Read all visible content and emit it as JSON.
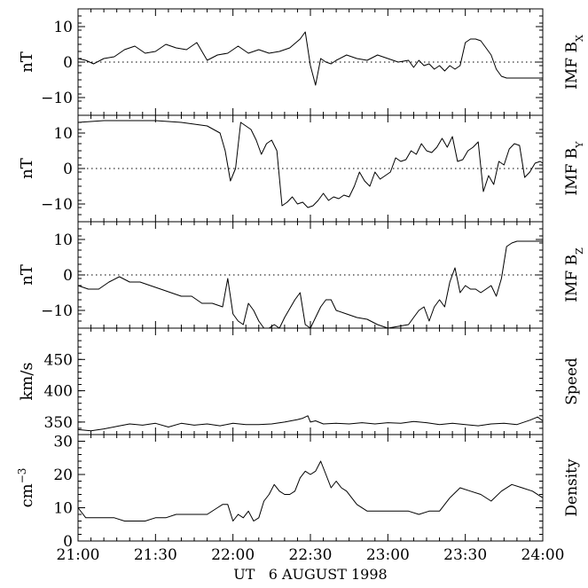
{
  "chart_data": {
    "type": "line",
    "xaxis": {
      "label": "UT   6 AUGUST 1998",
      "range": [
        0,
        180
      ],
      "ticks": [
        0,
        30,
        60,
        90,
        120,
        150,
        180
      ],
      "tick_labels": [
        "21:00",
        "21:30",
        "22:00",
        "22:30",
        "23:00",
        "23:30",
        "24:00"
      ]
    },
    "panels": [
      {
        "ylabel": "nT",
        "right_label": "IMF B",
        "right_label_sub": "X",
        "ylim": [
          -15,
          15
        ],
        "yticks": [
          -10,
          0,
          10
        ],
        "ytick_labels": [
          "−10",
          "0",
          "10"
        ],
        "zero_line": true,
        "series": [
          {
            "x": [
              0,
              3,
              6,
              10,
              14,
              18,
              22,
              26,
              30,
              34,
              38,
              42,
              46,
              50,
              54,
              58,
              62,
              66,
              70,
              74,
              78,
              82,
              86,
              88,
              90,
              92,
              94,
              96,
              98,
              100,
              104,
              108,
              112,
              116,
              120,
              124,
              128,
              130,
              132,
              134,
              136,
              138,
              140,
              142,
              144,
              146,
              148,
              150,
              152,
              154,
              156,
              158,
              160,
              162,
              164,
              166,
              168,
              170,
              172,
              174,
              176,
              178,
              180
            ],
            "y": [
              1,
              0.5,
              -0.5,
              1,
              1.5,
              3.5,
              4.5,
              2.5,
              3,
              5,
              4,
              3.5,
              5.5,
              0.5,
              2,
              2.5,
              4.5,
              2.5,
              3.5,
              2.5,
              3,
              4,
              6.5,
              8.5,
              -1,
              -6.5,
              1,
              0,
              -0.5,
              0.5,
              2,
              1,
              0.5,
              2,
              1,
              0,
              0.5,
              -1.5,
              0.5,
              -1,
              -0.5,
              -2,
              -1,
              -2.5,
              -1,
              -2,
              -1,
              5.5,
              6.5,
              6.5,
              6,
              4,
              2,
              -2,
              -4,
              -4.5,
              -4.5,
              -4.5,
              -4.5,
              -4.5,
              -4.5,
              -4.5,
              -4.5
            ]
          }
        ]
      },
      {
        "ylabel": "nT",
        "right_label": "IMF B",
        "right_label_sub": "Y",
        "ylim": [
          -15,
          15
        ],
        "yticks": [
          -10,
          0,
          10
        ],
        "ytick_labels": [
          "−10",
          "0",
          "10"
        ],
        "zero_line": true,
        "series": [
          {
            "x": [
              0,
              10,
              20,
              30,
              40,
              50,
              55,
              57,
              59,
              61,
              63,
              65,
              67,
              69,
              71,
              73,
              75,
              77,
              79,
              81,
              83,
              85,
              87,
              89,
              91,
              93,
              95,
              97,
              99,
              101,
              103,
              105,
              107,
              109,
              111,
              113,
              115,
              117,
              119,
              121,
              123,
              125,
              127,
              129,
              131,
              133,
              135,
              137,
              139,
              141,
              143,
              145,
              147,
              149,
              151,
              153,
              155,
              157,
              159,
              161,
              163,
              165,
              167,
              169,
              171,
              173,
              175,
              177,
              179,
              180
            ],
            "y": [
              13,
              13.5,
              13.5,
              13.5,
              13,
              12,
              10,
              5,
              -3.5,
              0,
              13,
              12,
              11,
              8,
              4,
              7,
              8,
              5,
              -10.5,
              -9.5,
              -8,
              -10,
              -9.5,
              -11,
              -10.5,
              -9,
              -7,
              -9,
              -8,
              -8.5,
              -7.5,
              -8,
              -5,
              -1,
              -3.5,
              -5,
              -1,
              -3,
              -2,
              -1,
              3,
              2,
              2.5,
              5,
              4,
              7,
              5,
              4.5,
              6,
              8.5,
              6,
              9,
              2,
              2.5,
              5,
              6,
              7.5,
              -6.5,
              -2,
              -4.5,
              2,
              1,
              5.5,
              7,
              6.5,
              -2.5,
              -1,
              1.5,
              2,
              1.5
            ]
          }
        ]
      },
      {
        "ylabel": "nT",
        "right_label": "IMF B",
        "right_label_sub": "Z",
        "ylim": [
          -15,
          15
        ],
        "yticks": [
          -10,
          0,
          10
        ],
        "ytick_labels": [
          "−10",
          "0",
          "10"
        ],
        "zero_line": true,
        "series": [
          {
            "x": [
              0,
              4,
              8,
              12,
              16,
              20,
              24,
              28,
              32,
              36,
              40,
              44,
              48,
              52,
              56,
              58,
              60,
              62,
              64,
              66,
              68,
              70,
              72,
              74,
              76,
              78,
              80,
              82,
              84,
              86,
              88,
              90,
              92,
              94,
              96,
              98,
              100,
              104,
              108,
              112,
              116,
              120,
              124,
              128,
              130,
              132,
              134,
              136,
              138,
              140,
              142,
              144,
              146,
              148,
              150,
              152,
              154,
              156,
              158,
              160,
              162,
              164,
              166,
              168,
              170,
              172,
              174,
              176,
              178,
              180
            ],
            "y": [
              -3,
              -4,
              -4,
              -2,
              -0.5,
              -2,
              -2,
              -3,
              -4,
              -5,
              -6,
              -6,
              -8,
              -8,
              -9,
              -1,
              -11,
              -13,
              -14,
              -8,
              -10,
              -13,
              -15,
              -15,
              -14,
              -15,
              -12,
              -9.5,
              -7,
              -5,
              -14,
              -15,
              -12,
              -9,
              -7,
              -7,
              -10,
              -11,
              -12,
              -12.5,
              -14,
              -15,
              -14.5,
              -14,
              -12,
              -10,
              -9,
              -13,
              -9,
              -7,
              -9,
              -2,
              2,
              -5,
              -3,
              -4,
              -4,
              -5,
              -4,
              -3,
              -6,
              -1,
              8,
              9,
              9.5,
              9.5,
              9.5,
              9.5,
              9.5,
              9.5
            ]
          }
        ]
      },
      {
        "ylabel": "km/s",
        "right_label": "Speed",
        "right_label_sub": "",
        "ylim": [
          330,
          500
        ],
        "yticks": [
          350,
          400,
          450
        ],
        "ytick_labels": [
          "350",
          "400",
          "450"
        ],
        "zero_line": false,
        "series": [
          {
            "x": [
              0,
              5,
              10,
              15,
              20,
              25,
              30,
              35,
              40,
              45,
              50,
              55,
              60,
              65,
              70,
              75,
              80,
              85,
              87,
              89,
              90,
              92,
              95,
              100,
              105,
              110,
              115,
              120,
              125,
              130,
              135,
              140,
              145,
              150,
              155,
              160,
              165,
              170,
              175,
              178,
              180
            ],
            "y": [
              338,
              336,
              339,
              343,
              347,
              345,
              348,
              342,
              348,
              345,
              347,
              344,
              348,
              346,
              346,
              347,
              350,
              354,
              356,
              360,
              350,
              352,
              347,
              348,
              347,
              349,
              347,
              349,
              348,
              351,
              349,
              346,
              348,
              346,
              344,
              347,
              348,
              346,
              353,
              358,
              352
            ]
          }
        ]
      },
      {
        "ylabel": "cm",
        "ylabel_sup": "−3",
        "right_label": "Density",
        "right_label_sub": "",
        "ylim": [
          0,
          32
        ],
        "yticks": [
          0,
          10,
          20,
          30
        ],
        "ytick_labels": [
          "0",
          "10",
          "20",
          "30"
        ],
        "zero_line": false,
        "series": [
          {
            "x": [
              0,
              3,
              6,
              10,
              14,
              18,
              22,
              26,
              30,
              34,
              38,
              42,
              46,
              50,
              54,
              56,
              58,
              60,
              62,
              64,
              66,
              68,
              70,
              72,
              74,
              76,
              78,
              80,
              82,
              84,
              86,
              88,
              90,
              92,
              94,
              96,
              98,
              100,
              102,
              104,
              106,
              108,
              112,
              116,
              120,
              124,
              128,
              132,
              136,
              140,
              144,
              148,
              152,
              156,
              160,
              164,
              168,
              172,
              176,
              180
            ],
            "y": [
              10,
              7,
              7,
              7,
              7,
              6,
              6,
              6,
              7,
              7,
              8,
              8,
              8,
              8,
              10,
              11,
              11,
              6,
              8,
              7,
              9,
              6,
              7,
              12,
              14,
              17,
              15,
              14,
              14,
              15,
              19,
              21,
              20,
              21,
              24,
              20,
              16,
              18,
              16,
              15,
              13,
              11,
              9,
              9,
              9,
              9,
              9,
              8,
              9,
              9,
              13,
              16,
              15,
              14,
              12,
              15,
              17,
              16,
              15,
              13
            ]
          }
        ]
      }
    ]
  }
}
